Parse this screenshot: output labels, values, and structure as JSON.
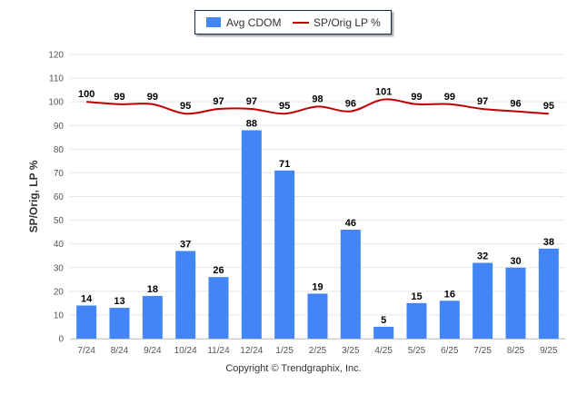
{
  "chart_data": {
    "type": "bar",
    "categories": [
      "7/24",
      "8/24",
      "9/24",
      "10/24",
      "11/24",
      "12/24",
      "1/25",
      "2/25",
      "3/25",
      "4/25",
      "5/25",
      "6/25",
      "7/25",
      "8/25",
      "9/25"
    ],
    "series": [
      {
        "name": "Avg CDOM",
        "kind": "bar",
        "color": "#4285f4",
        "values": [
          14,
          13,
          18,
          37,
          26,
          88,
          71,
          19,
          46,
          5,
          15,
          16,
          32,
          30,
          38
        ]
      },
      {
        "name": "SP/Orig LP %",
        "kind": "line",
        "color": "#c00000",
        "values": [
          100,
          99,
          99,
          95,
          97,
          97,
          95,
          98,
          96,
          101,
          99,
          99,
          97,
          96,
          95
        ]
      }
    ],
    "ylabel": "SP/Orig, LP %",
    "ylim": [
      0,
      120
    ],
    "yticks": [
      0,
      10,
      20,
      30,
      40,
      50,
      60,
      70,
      80,
      90,
      100,
      110,
      120
    ],
    "grid": true,
    "legend_position": "top-center"
  },
  "legend": {
    "bar_label": "Avg CDOM",
    "line_label": "SP/Orig LP %"
  },
  "footer": {
    "copyright": "Copyright © Trendgraphix, Inc."
  },
  "colors": {
    "bar": "#4285f4",
    "line": "#c00000",
    "grid": "#e6e6e6",
    "axis_text": "#555555"
  }
}
